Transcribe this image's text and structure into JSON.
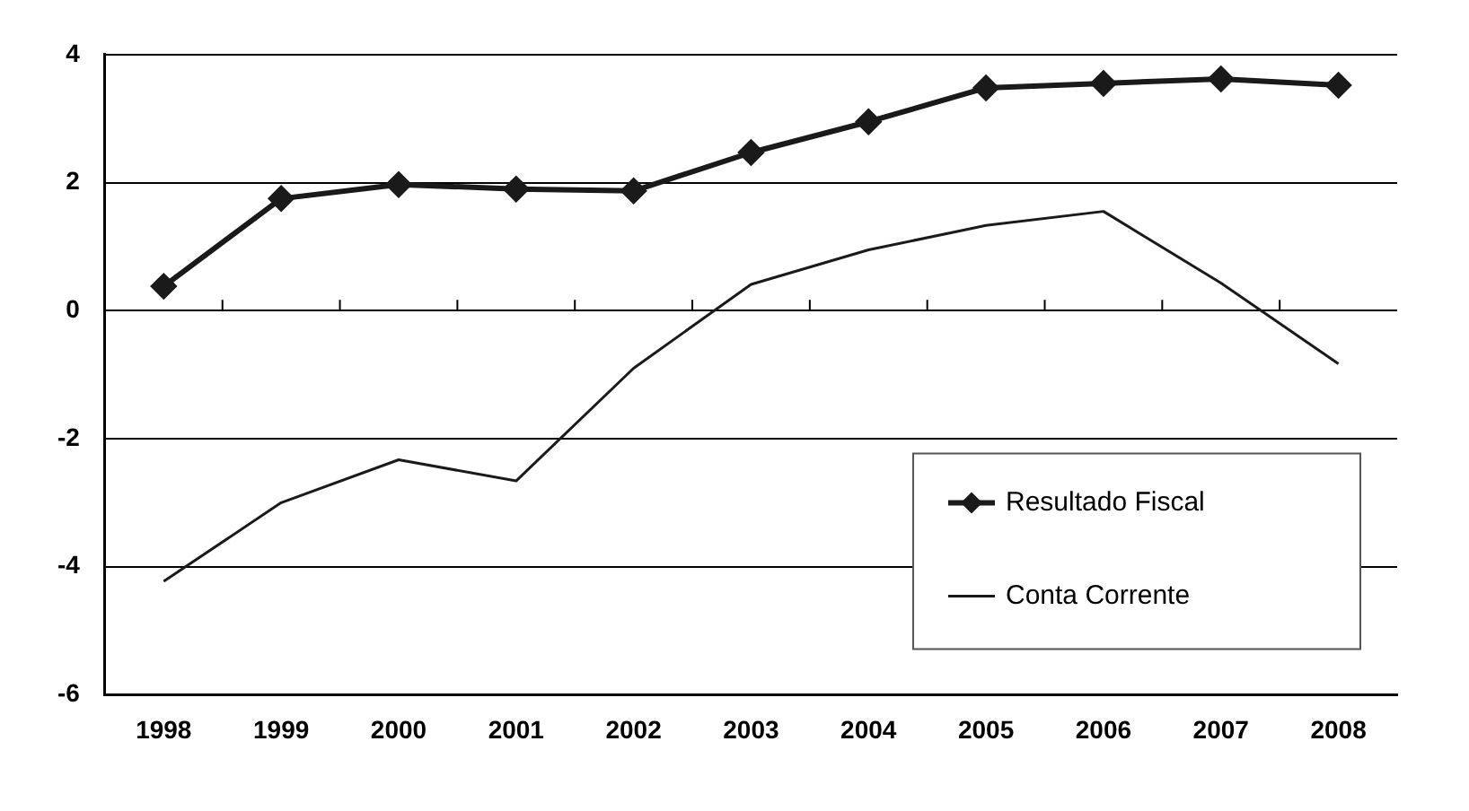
{
  "chart_data": {
    "type": "line",
    "categories": [
      "1998",
      "1999",
      "2000",
      "2001",
      "2002",
      "2003",
      "2004",
      "2005",
      "2006",
      "2007",
      "2008"
    ],
    "series": [
      {
        "name": "Resultado Fiscal",
        "color": "#1a1a1a",
        "marker": "diamond",
        "values": [
          0.38,
          1.75,
          1.97,
          1.9,
          1.87,
          2.47,
          2.95,
          3.48,
          3.55,
          3.62,
          3.52
        ]
      },
      {
        "name": "Conta Corrente",
        "color": "#1a1a1a",
        "marker": "none",
        "values": [
          -4.23,
          -3.0,
          -2.33,
          -2.66,
          -0.9,
          0.41,
          0.95,
          1.33,
          1.55,
          0.43,
          -0.83
        ]
      }
    ],
    "ylim": [
      -6,
      4
    ],
    "yticks": [
      -6,
      -4,
      -2,
      0,
      2,
      4
    ],
    "grid": "y",
    "legend": "bottom right",
    "line_style": "solid"
  }
}
